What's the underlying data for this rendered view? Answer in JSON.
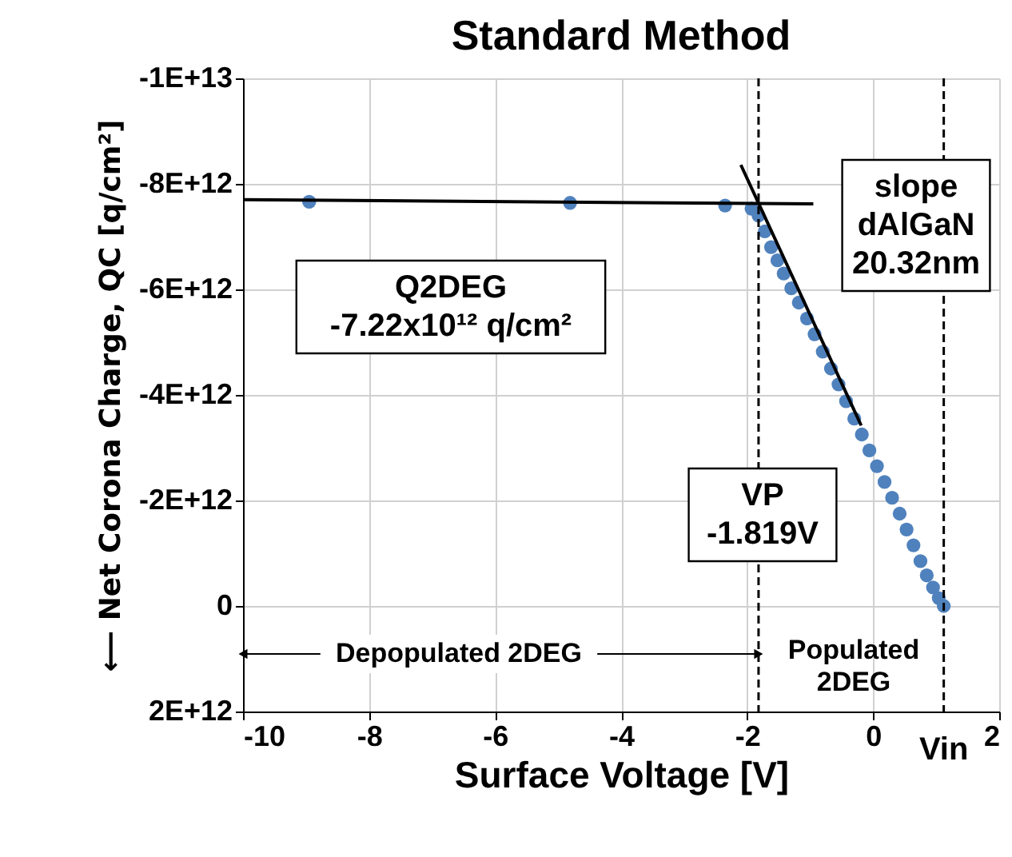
{
  "chart_data": {
    "type": "scatter",
    "title": "Standard Method",
    "xlabel": "Surface Voltage [V]",
    "ylabel": "⟵ Net Corona Charge, QC [q/cm²]",
    "xlim": [
      -10,
      2
    ],
    "ylim": [
      2000000000000.0,
      -10000000000000.0
    ],
    "xticks": [
      -10,
      -8,
      -6,
      -4,
      -2,
      0,
      2
    ],
    "yticks": [
      {
        "value": -10000000000000.0,
        "label": "-1E+13"
      },
      {
        "value": -8000000000000.0,
        "label": "-8E+12"
      },
      {
        "value": -6000000000000.0,
        "label": "-6E+12"
      },
      {
        "value": -4000000000000.0,
        "label": "-4E+12"
      },
      {
        "value": -2000000000000.0,
        "label": "-2E+12"
      },
      0,
      {
        "value": 2000000000000.0,
        "label": "2E+12"
      }
    ],
    "grid": true,
    "series": [
      {
        "marker": "circle",
        "color": "#4f81bd",
        "x": [
          -8.95,
          -4.81,
          -2.35,
          -1.93,
          -1.82,
          -1.72,
          -1.62,
          -1.52,
          -1.42,
          -1.3,
          -1.18,
          -1.05,
          -0.93,
          -0.8,
          -0.67,
          -0.55,
          -0.43,
          -0.3,
          -0.18,
          -0.06,
          0.06,
          0.18,
          0.3,
          0.42,
          0.53,
          0.64,
          0.75,
          0.85,
          0.95,
          1.04,
          1.12
        ],
        "values": [
          -7660000000000.0,
          -7640000000000.0,
          -7590000000000.0,
          -7530000000000.0,
          -7400000000000.0,
          -7100000000000.0,
          -6800000000000.0,
          -6550000000000.0,
          -6300000000000.0,
          -6020000000000.0,
          -5750000000000.0,
          -5450000000000.0,
          -5150000000000.0,
          -4820000000000.0,
          -4500000000000.0,
          -4200000000000.0,
          -3880000000000.0,
          -3550000000000.0,
          -3250000000000.0,
          -2950000000000.0,
          -2650000000000.0,
          -2350000000000.0,
          -2050000000000.0,
          -1750000000000.0,
          -1450000000000.0,
          -1150000000000.0,
          -850000000000.0,
          -580000000000.0,
          -350000000000.0,
          -150000000000.0,
          0
        ]
      },
      {
        "type": "line",
        "color": "#000000",
        "line_style": "solid",
        "x": [
          -10,
          -0.95
        ],
        "values": [
          -7700000000000.0,
          -7620000000000.0
        ]
      },
      {
        "type": "line",
        "color": "#000000",
        "line_style": "solid",
        "x": [
          -2.1,
          -0.19
        ],
        "values": [
          -8360000000000.0,
          -3420000000000.0
        ]
      }
    ],
    "ref_lines": [
      {
        "axis": "x",
        "value": -1.819,
        "line_style": "dashed",
        "color": "#000000"
      },
      {
        "axis": "x",
        "value": 1.12,
        "label": "Vin",
        "line_style": "dashed",
        "color": "#000000"
      }
    ],
    "annotations": [
      "Q2DEG\n-7.22x10¹² q/cm²",
      "slope\ndAlGaN\n20.32nm",
      "VP\n-1.819V",
      "Depopulated 2DEG",
      "Populated\n2DEG"
    ]
  }
}
